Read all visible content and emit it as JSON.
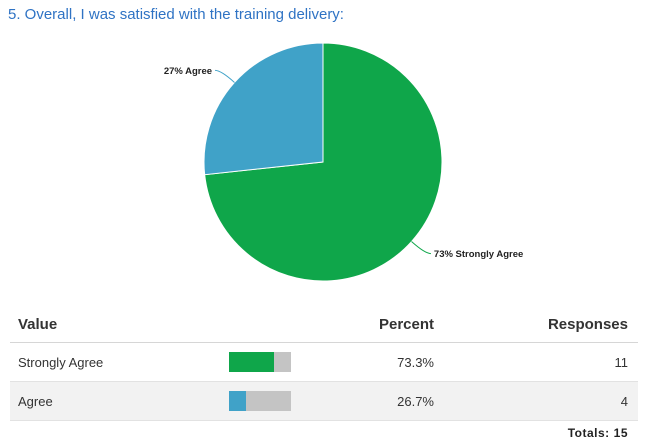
{
  "question": "5. Overall, I was satisfied with the training delivery:",
  "chart_data": {
    "type": "pie",
    "title": "5. Overall, I was satisfied with the training delivery:",
    "slices": [
      {
        "label": "Strongly Agree",
        "percent": 73.3,
        "display": "73% Strongly Agree",
        "color": "#0fa64a"
      },
      {
        "label": "Agree",
        "percent": 26.7,
        "display": "27% Agree",
        "color": "#40a2c8"
      }
    ]
  },
  "table": {
    "headers": {
      "value": "Value",
      "percent": "Percent",
      "responses": "Responses"
    },
    "rows": [
      {
        "value": "Strongly Agree",
        "fraction": 0.733,
        "percent": "73.3%",
        "responses": "11",
        "color": "#0fa64a"
      },
      {
        "value": "Agree",
        "fraction": 0.267,
        "percent": "26.7%",
        "responses": "4",
        "color": "#40a2c8"
      }
    ],
    "totals_label": "Totals:",
    "totals_value": "15"
  }
}
